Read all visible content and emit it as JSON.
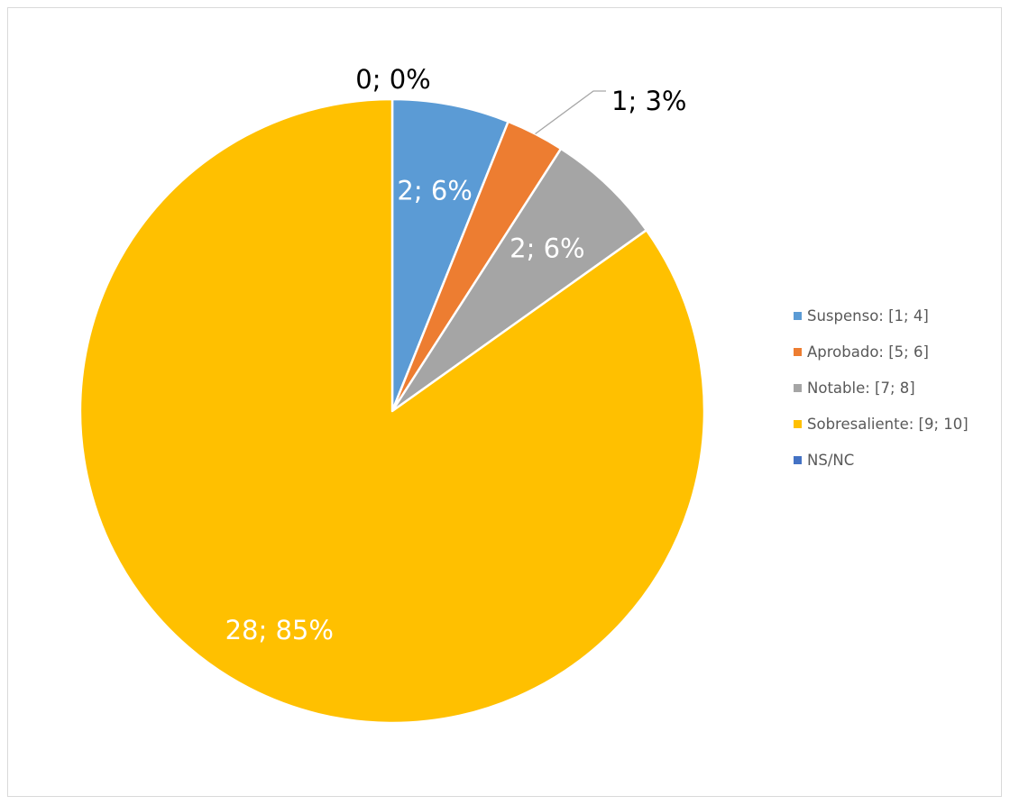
{
  "chart_data": {
    "type": "pie",
    "categories": [
      "Suspenso: [1; 4]",
      "Aprobado: [5; 6]",
      "Notable: [7; 8]",
      "Sobresaliente: [9; 10]",
      "NS/NC"
    ],
    "values": [
      2,
      1,
      2,
      28,
      0
    ],
    "percentages": [
      6,
      3,
      6,
      85,
      0
    ],
    "data_labels": [
      "2; 6%",
      "1; 3%",
      "2; 6%",
      "28; 85%",
      "0; 0%"
    ],
    "colors": [
      "#5b9bd5",
      "#ed7d31",
      "#a5a5a5",
      "#ffc000",
      "#4472c4"
    ],
    "start_angle": 0,
    "direction": "clockwise",
    "legend": "right"
  }
}
